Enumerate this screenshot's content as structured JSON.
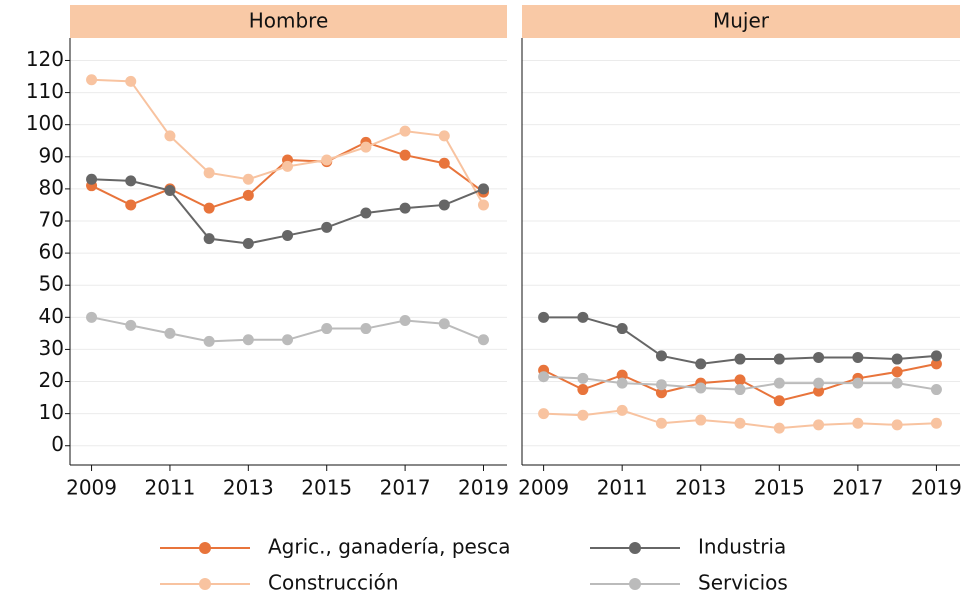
{
  "chart_data": [
    {
      "type": "line",
      "title": "Hombre",
      "x": [
        2009,
        2010,
        2011,
        2012,
        2013,
        2014,
        2015,
        2016,
        2017,
        2018,
        2019
      ],
      "xlim": [
        2008.45,
        2019.6
      ],
      "xticks": [
        2009,
        2011,
        2013,
        2015,
        2017,
        2019
      ],
      "ylim": [
        -6,
        127
      ],
      "yticks": [
        0,
        10,
        20,
        30,
        40,
        50,
        60,
        70,
        80,
        90,
        100,
        110,
        120
      ],
      "grid": true,
      "strip_color": "#f9c9a6",
      "series": [
        {
          "name": "Agric., ganadería, pesca",
          "color": "#e8743b",
          "values": [
            81,
            75,
            80,
            74,
            78,
            89,
            88.5,
            94.5,
            90.5,
            88,
            79
          ]
        },
        {
          "name": "Construcción",
          "color": "#f8c3a0",
          "values": [
            114,
            113.5,
            96.5,
            85,
            83,
            87,
            89,
            93,
            98,
            96.5,
            75
          ]
        },
        {
          "name": "Industria",
          "color": "#666666",
          "values": [
            83,
            82.5,
            79.5,
            64.5,
            63,
            65.5,
            68,
            72.5,
            74,
            75,
            80
          ]
        },
        {
          "name": "Servicios",
          "color": "#bbbbbb",
          "values": [
            40,
            37.5,
            35,
            32.5,
            33,
            33,
            36.5,
            36.5,
            39,
            38,
            33
          ]
        }
      ]
    },
    {
      "type": "line",
      "title": "Mujer",
      "x": [
        2009,
        2010,
        2011,
        2012,
        2013,
        2014,
        2015,
        2016,
        2017,
        2018,
        2019
      ],
      "xlim": [
        2008.45,
        2019.6
      ],
      "xticks": [
        2009,
        2011,
        2013,
        2015,
        2017,
        2019
      ],
      "ylim": [
        -6,
        127
      ],
      "yticks": [
        0,
        10,
        20,
        30,
        40,
        50,
        60,
        70,
        80,
        90,
        100,
        110,
        120
      ],
      "grid": true,
      "strip_color": "#f9c9a6",
      "series": [
        {
          "name": "Agric., ganadería, pesca",
          "color": "#e8743b",
          "values": [
            23.5,
            17.5,
            22,
            16.5,
            19.5,
            20.5,
            14,
            17,
            21,
            23,
            25.5
          ]
        },
        {
          "name": "Construcción",
          "color": "#f8c3a0",
          "values": [
            10,
            9.5,
            11,
            7,
            8,
            7,
            5.5,
            6.5,
            7,
            6.5,
            7
          ]
        },
        {
          "name": "Industria",
          "color": "#666666",
          "values": [
            40,
            40,
            36.5,
            28,
            25.5,
            27,
            27,
            27.5,
            27.5,
            27,
            28
          ]
        },
        {
          "name": "Servicios",
          "color": "#bbbbbb",
          "values": [
            21.5,
            21,
            19.5,
            19,
            18,
            17.5,
            19.5,
            19.5,
            19.5,
            19.5,
            17.5
          ]
        }
      ]
    }
  ]
}
